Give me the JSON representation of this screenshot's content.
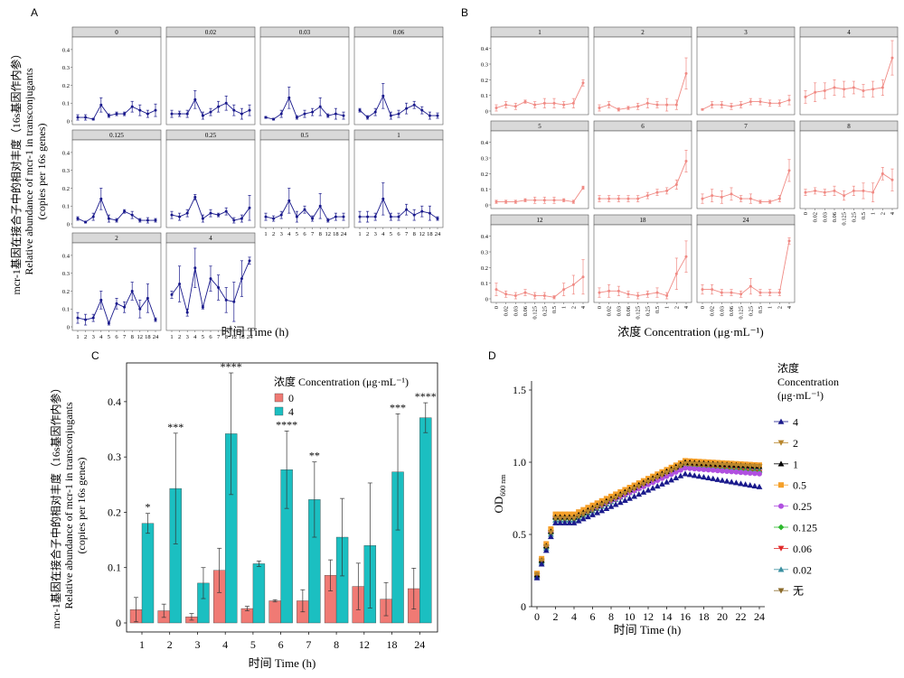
{
  "chart_data": [
    {
      "id": "A",
      "type": "line",
      "panel_label": "A",
      "facet_variable": "concentration",
      "xlabel": "时间 Time (h)",
      "ylabel_lines": [
        "mcr-1基因在接合子中的相对丰度（16s基因作内参）",
        "Relative abundance of mcr-1 in transconjugants",
        "(copies per 16s genes)"
      ],
      "x_ticks": [
        "1",
        "2",
        "3",
        "4",
        "5",
        "6",
        "7",
        "8",
        "12",
        "18",
        "24"
      ],
      "y_ticks": [
        "0",
        "0.1",
        "0.2",
        "0.3",
        "0.4"
      ],
      "ylim": [
        0,
        0.45
      ],
      "color": "#1a1a8c",
      "facets": [
        {
          "label": "0",
          "values": [
            0.02,
            0.02,
            0.01,
            0.09,
            0.03,
            0.04,
            0.04,
            0.08,
            0.06,
            0.04,
            0.06
          ],
          "errors": [
            0.015,
            0.015,
            0.005,
            0.04,
            0.01,
            0.01,
            0.01,
            0.03,
            0.03,
            0.02,
            0.035
          ]
        },
        {
          "label": "0.02",
          "values": [
            0.04,
            0.04,
            0.04,
            0.12,
            0.03,
            0.05,
            0.08,
            0.1,
            0.06,
            0.04,
            0.06
          ],
          "errors": [
            0.02,
            0.015,
            0.02,
            0.05,
            0.02,
            0.02,
            0.03,
            0.04,
            0.03,
            0.03,
            0.03
          ]
        },
        {
          "label": "0.03",
          "values": [
            0.02,
            0.01,
            0.04,
            0.13,
            0.02,
            0.04,
            0.05,
            0.08,
            0.03,
            0.04,
            0.03
          ],
          "errors": [
            0.005,
            0.005,
            0.02,
            0.06,
            0.01,
            0.02,
            0.02,
            0.05,
            0.01,
            0.03,
            0.02
          ]
        },
        {
          "label": "0.06",
          "values": [
            0.06,
            0.02,
            0.05,
            0.14,
            0.03,
            0.04,
            0.07,
            0.09,
            0.06,
            0.03,
            0.03
          ],
          "errors": [
            0.01,
            0.01,
            0.02,
            0.07,
            0.02,
            0.02,
            0.03,
            0.02,
            0.02,
            0.02,
            0.015
          ]
        },
        {
          "label": "0.125",
          "values": [
            0.03,
            0.01,
            0.04,
            0.14,
            0.03,
            0.02,
            0.07,
            0.05,
            0.02,
            0.02,
            0.02
          ],
          "errors": [
            0.01,
            0.005,
            0.02,
            0.06,
            0.02,
            0.01,
            0.01,
            0.02,
            0.01,
            0.015,
            0.01
          ]
        },
        {
          "label": "0.25",
          "values": [
            0.05,
            0.04,
            0.06,
            0.15,
            0.03,
            0.06,
            0.05,
            0.07,
            0.02,
            0.03,
            0.09
          ],
          "errors": [
            0.02,
            0.02,
            0.02,
            0.015,
            0.02,
            0.02,
            0.01,
            0.02,
            0.015,
            0.02,
            0.07
          ]
        },
        {
          "label": "0.5",
          "values": [
            0.04,
            0.03,
            0.05,
            0.13,
            0.04,
            0.08,
            0.03,
            0.1,
            0.02,
            0.04,
            0.04
          ],
          "errors": [
            0.02,
            0.015,
            0.02,
            0.07,
            0.03,
            0.02,
            0.015,
            0.07,
            0.01,
            0.02,
            0.02
          ]
        },
        {
          "label": "1",
          "values": [
            0.04,
            0.04,
            0.04,
            0.14,
            0.04,
            0.04,
            0.08,
            0.05,
            0.07,
            0.06,
            0.03
          ],
          "errors": [
            0.03,
            0.03,
            0.02,
            0.09,
            0.02,
            0.02,
            0.03,
            0.03,
            0.03,
            0.04,
            0.01
          ]
        },
        {
          "label": "2",
          "values": [
            0.05,
            0.04,
            0.05,
            0.15,
            0.02,
            0.13,
            0.11,
            0.2,
            0.1,
            0.16,
            0.04
          ],
          "errors": [
            0.03,
            0.03,
            0.02,
            0.05,
            0.01,
            0.03,
            0.03,
            0.05,
            0.05,
            0.08,
            0.01
          ]
        },
        {
          "label": "4",
          "values": [
            0.18,
            0.24,
            0.08,
            0.33,
            0.11,
            0.27,
            0.22,
            0.15,
            0.14,
            0.27,
            0.37
          ],
          "errors": [
            0.02,
            0.1,
            0.02,
            0.11,
            0.01,
            0.07,
            0.07,
            0.07,
            0.11,
            0.1,
            0.02
          ]
        }
      ]
    },
    {
      "id": "B",
      "type": "line",
      "panel_label": "B",
      "facet_variable": "time",
      "xlabel": "浓度 Concentration (μg·mL⁻¹)",
      "x_ticks": [
        "0",
        "0.02",
        "0.03",
        "0.06",
        "0.125",
        "0.25",
        "0.5",
        "1",
        "2",
        "4"
      ],
      "y_ticks": [
        "0",
        "0.1",
        "0.2",
        "0.3",
        "0.4"
      ],
      "ylim": [
        0,
        0.45
      ],
      "color": "#f08a84",
      "facets": [
        {
          "label": "1",
          "values": [
            0.02,
            0.04,
            0.03,
            0.06,
            0.04,
            0.05,
            0.05,
            0.04,
            0.05,
            0.18
          ],
          "errors": [
            0.02,
            0.02,
            0.02,
            0.01,
            0.02,
            0.03,
            0.03,
            0.02,
            0.03,
            0.02
          ]
        },
        {
          "label": "2",
          "values": [
            0.02,
            0.04,
            0.01,
            0.02,
            0.03,
            0.05,
            0.04,
            0.04,
            0.04,
            0.24
          ],
          "errors": [
            0.02,
            0.02,
            0.01,
            0.01,
            0.02,
            0.03,
            0.02,
            0.04,
            0.03,
            0.1
          ]
        },
        {
          "label": "3",
          "values": [
            0.01,
            0.04,
            0.04,
            0.03,
            0.04,
            0.06,
            0.06,
            0.05,
            0.05,
            0.07
          ],
          "errors": [
            0.005,
            0.02,
            0.02,
            0.02,
            0.02,
            0.02,
            0.02,
            0.02,
            0.02,
            0.03
          ]
        },
        {
          "label": "4",
          "values": [
            0.09,
            0.12,
            0.13,
            0.15,
            0.14,
            0.15,
            0.13,
            0.14,
            0.15,
            0.34
          ],
          "errors": [
            0.04,
            0.06,
            0.05,
            0.05,
            0.05,
            0.04,
            0.04,
            0.05,
            0.05,
            0.11
          ]
        },
        {
          "label": "5",
          "values": [
            0.02,
            0.02,
            0.02,
            0.03,
            0.03,
            0.03,
            0.03,
            0.03,
            0.02,
            0.11
          ],
          "errors": [
            0.01,
            0.01,
            0.01,
            0.01,
            0.02,
            0.02,
            0.02,
            0.01,
            0.01,
            0.01
          ]
        },
        {
          "label": "6",
          "values": [
            0.04,
            0.04,
            0.04,
            0.04,
            0.04,
            0.06,
            0.08,
            0.09,
            0.13,
            0.28
          ],
          "errors": [
            0.02,
            0.02,
            0.02,
            0.02,
            0.02,
            0.02,
            0.02,
            0.02,
            0.03,
            0.07
          ]
        },
        {
          "label": "7",
          "values": [
            0.04,
            0.06,
            0.05,
            0.07,
            0.04,
            0.04,
            0.02,
            0.02,
            0.04,
            0.22
          ],
          "errors": [
            0.03,
            0.04,
            0.04,
            0.04,
            0.02,
            0.03,
            0.01,
            0.01,
            0.02,
            0.07
          ]
        },
        {
          "label": "8",
          "values": [
            0.08,
            0.09,
            0.08,
            0.09,
            0.06,
            0.09,
            0.09,
            0.08,
            0.2,
            0.16
          ],
          "errors": [
            0.02,
            0.02,
            0.02,
            0.03,
            0.03,
            0.03,
            0.05,
            0.06,
            0.04,
            0.07
          ]
        },
        {
          "label": "12",
          "values": [
            0.06,
            0.03,
            0.02,
            0.04,
            0.02,
            0.02,
            0.01,
            0.06,
            0.09,
            0.14
          ],
          "errors": [
            0.04,
            0.02,
            0.02,
            0.02,
            0.02,
            0.02,
            0.01,
            0.04,
            0.06,
            0.11
          ]
        },
        {
          "label": "18",
          "values": [
            0.04,
            0.05,
            0.05,
            0.03,
            0.02,
            0.03,
            0.04,
            0.02,
            0.16,
            0.27
          ],
          "errors": [
            0.03,
            0.04,
            0.03,
            0.02,
            0.02,
            0.02,
            0.03,
            0.02,
            0.1,
            0.1
          ]
        },
        {
          "label": "24",
          "values": [
            0.06,
            0.06,
            0.04,
            0.04,
            0.03,
            0.08,
            0.04,
            0.04,
            0.04,
            0.37
          ],
          "errors": [
            0.03,
            0.03,
            0.02,
            0.02,
            0.02,
            0.05,
            0.02,
            0.02,
            0.02,
            0.02
          ]
        }
      ]
    },
    {
      "id": "C",
      "type": "bar",
      "panel_label": "C",
      "ylabel_lines": [
        "mcr-1基因在接合子中的相对丰度（16s基因作内参）",
        "Relative abundance of mcr-1 in transconjugants",
        "(copies per 16s genes)"
      ],
      "xlabel": "时间 Time (h)",
      "legend_title": "浓度 Concentration (μg·mL⁻¹)",
      "legend_position": "top-left",
      "categories": [
        "1",
        "2",
        "3",
        "4",
        "5",
        "6",
        "7",
        "8",
        "12",
        "18",
        "24"
      ],
      "y_ticks": [
        "0",
        "0.1",
        "0.2",
        "0.3",
        "0.4"
      ],
      "ylim": [
        0,
        0.47
      ],
      "series": [
        {
          "name": "0",
          "color": "#f07a74",
          "values": [
            0.024,
            0.022,
            0.011,
            0.095,
            0.026,
            0.04,
            0.04,
            0.086,
            0.066,
            0.043,
            0.062
          ],
          "errors": [
            0.022,
            0.012,
            0.006,
            0.04,
            0.004,
            0.002,
            0.02,
            0.028,
            0.042,
            0.03,
            0.037
          ]
        },
        {
          "name": "4",
          "color": "#1bbfc1",
          "values": [
            0.18,
            0.243,
            0.072,
            0.342,
            0.107,
            0.277,
            0.223,
            0.155,
            0.14,
            0.273,
            0.371
          ],
          "errors": [
            0.018,
            0.1,
            0.028,
            0.11,
            0.005,
            0.07,
            0.068,
            0.07,
            0.113,
            0.105,
            0.027
          ]
        }
      ],
      "significance": [
        "*",
        "***",
        "",
        "****",
        "",
        "****",
        "**",
        "",
        "",
        "***",
        "****"
      ]
    },
    {
      "id": "D",
      "type": "scatter",
      "panel_label": "D",
      "ylabel": "OD",
      "ylabel_sub": "600 nm",
      "xlabel": "时间 Time (h)",
      "legend_title_lines": [
        "浓度",
        "Concentration",
        "(μg·mL⁻¹)"
      ],
      "legend_position": "right",
      "x_ticks": [
        "0",
        "2",
        "4",
        "6",
        "8",
        "10",
        "12",
        "14",
        "16",
        "18",
        "20",
        "22",
        "24"
      ],
      "y_ticks": [
        "0",
        "0.5",
        "1.0",
        "1.5"
      ],
      "xlim": [
        -0.5,
        24.5
      ],
      "ylim": [
        0,
        1.5
      ],
      "x": [
        0,
        0.5,
        1,
        1.5,
        2,
        2.5,
        3,
        3.5,
        4,
        4.5,
        5,
        5.5,
        6,
        6.5,
        7,
        7.5,
        8,
        8.5,
        9,
        9.5,
        10,
        10.5,
        11,
        11.5,
        12,
        12.5,
        13,
        13.5,
        14,
        14.5,
        15,
        15.5,
        16,
        16.5,
        17,
        17.5,
        18,
        18.5,
        19,
        19.5,
        20,
        20.5,
        21,
        21.5,
        22,
        22.5,
        23,
        23.5,
        24
      ],
      "curve_model": {
        "note": "curves follow: rapid rise 0-2 h, plateau ~0.6 at 2-4 h, linear rise to peak at 16 h, slight decline to 24 h"
      },
      "series": [
        {
          "name": "4",
          "marker": "triangle-up",
          "color": "#1a1a8c",
          "start": 0.2,
          "lag": 0.58,
          "peak": 0.92,
          "end": 0.83
        },
        {
          "name": "2",
          "marker": "triangle-down",
          "color": "#b8862d",
          "start": 0.22,
          "lag": 0.61,
          "peak": 0.99,
          "end": 0.97
        },
        {
          "name": "1",
          "marker": "triangle-up",
          "color": "#000000",
          "start": 0.22,
          "lag": 0.62,
          "peak": 1.0,
          "end": 0.97
        },
        {
          "name": "0.5",
          "marker": "square",
          "color": "#f5a02a",
          "start": 0.23,
          "lag": 0.64,
          "peak": 1.01,
          "end": 0.98
        },
        {
          "name": "0.25",
          "marker": "circle",
          "color": "#b050e0",
          "start": 0.22,
          "lag": 0.62,
          "peak": 0.96,
          "end": 0.92
        },
        {
          "name": "0.125",
          "marker": "diamond",
          "color": "#2cb82c",
          "start": 0.21,
          "lag": 0.61,
          "peak": 0.97,
          "end": 0.93
        },
        {
          "name": "0.06",
          "marker": "triangle-down",
          "color": "#e02a2a",
          "start": 0.21,
          "lag": 0.6,
          "peak": 0.97,
          "end": 0.93
        },
        {
          "name": "0.02",
          "marker": "triangle-up",
          "color": "#3a8fa0",
          "start": 0.21,
          "lag": 0.6,
          "peak": 0.98,
          "end": 0.95
        },
        {
          "name": "无",
          "marker": "triangle-down",
          "color": "#8a6a2a",
          "start": 0.21,
          "lag": 0.61,
          "peak": 0.99,
          "end": 0.97
        }
      ]
    }
  ]
}
